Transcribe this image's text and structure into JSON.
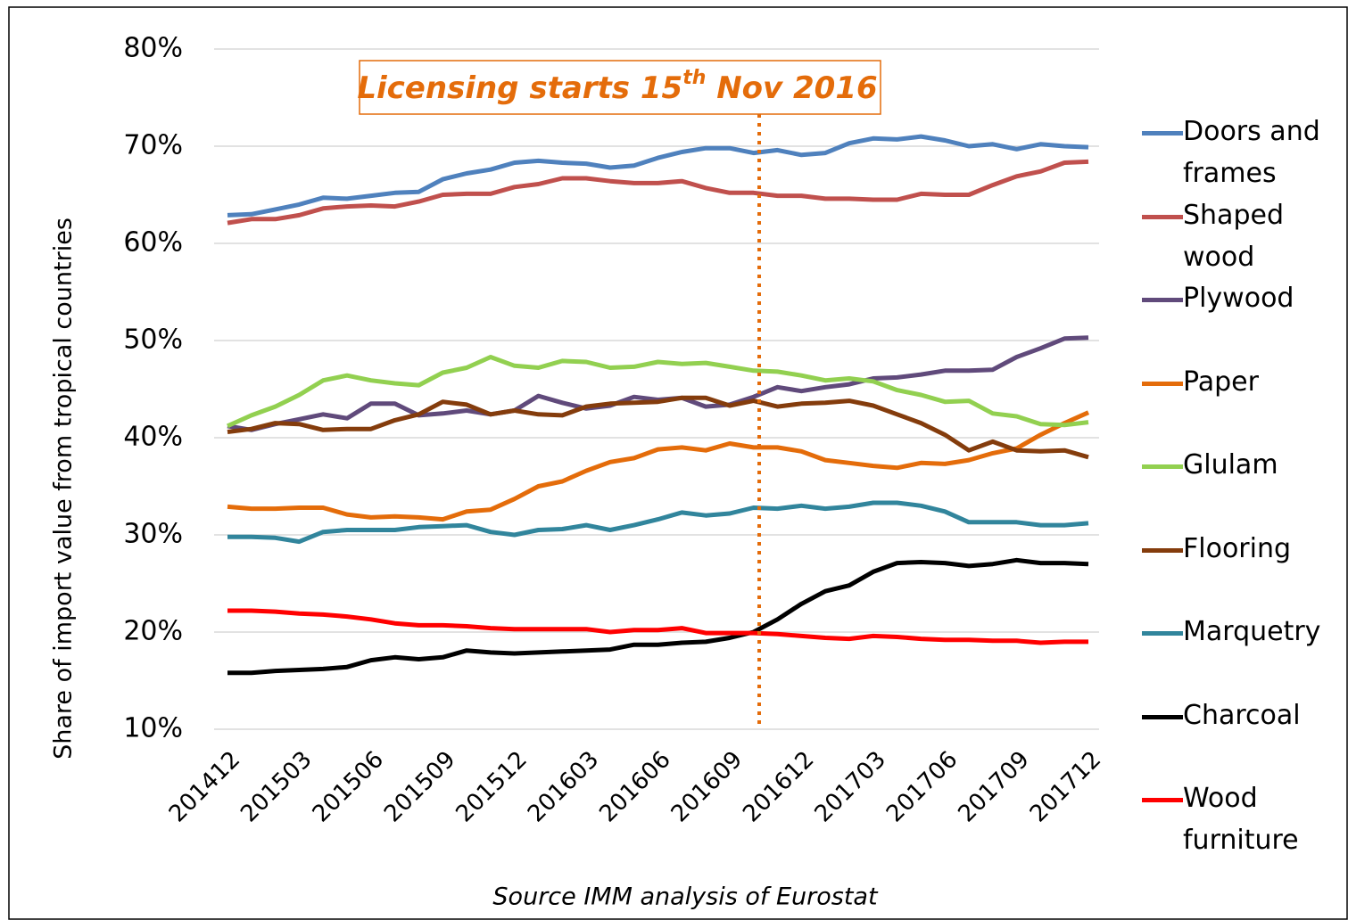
{
  "chart_data": {
    "type": "line",
    "annotation": [
      "Licensing starts 15",
      "th",
      " Nov 2016"
    ],
    "y_label": "Share of import value from tropical countries",
    "source": "Source IMM analysis of Eurostat",
    "categories": [
      "201412",
      null,
      null,
      "201503",
      null,
      null,
      "201506",
      null,
      null,
      "201509",
      null,
      null,
      "201512",
      null,
      null,
      "201603",
      null,
      null,
      "201606",
      null,
      null,
      "201609",
      null,
      null,
      "201612",
      null,
      null,
      "201703",
      null,
      null,
      "201706",
      null,
      null,
      "201709",
      null,
      null,
      "201712"
    ],
    "ylim": [
      10,
      80
    ],
    "yticks": [
      {
        "value": 10,
        "label": "10%"
      },
      {
        "value": 20,
        "label": "20%"
      },
      {
        "value": 30,
        "label": "30%"
      },
      {
        "value": 40,
        "label": "40%"
      },
      {
        "value": 50,
        "label": "50%"
      },
      {
        "value": 60,
        "label": "60%"
      },
      {
        "value": 70,
        "label": "70%"
      },
      {
        "value": 80,
        "label": "80%"
      }
    ],
    "grid": true,
    "legend": "right",
    "series": [
      {
        "name": "Doors and frames",
        "color": "#4f81bd",
        "values": [
          62.9,
          63.0,
          63.5,
          64.0,
          64.7,
          64.6,
          64.9,
          65.2,
          65.3,
          66.6,
          67.2,
          67.6,
          68.3,
          68.5,
          68.3,
          68.2,
          67.8,
          68.0,
          68.8,
          69.4,
          69.8,
          69.8,
          69.3,
          69.6,
          69.1,
          69.3,
          70.3,
          70.8,
          70.7,
          71.0,
          70.6,
          70.0,
          70.2,
          69.7,
          70.2,
          70.0,
          69.9
        ]
      },
      {
        "name": "Shaped wood",
        "color": "#c0504d",
        "values": [
          62.1,
          62.5,
          62.5,
          62.9,
          63.6,
          63.8,
          63.9,
          63.8,
          64.3,
          65.0,
          65.1,
          65.1,
          65.8,
          66.1,
          66.7,
          66.7,
          66.4,
          66.2,
          66.2,
          66.4,
          65.7,
          65.2,
          65.2,
          64.9,
          64.9,
          64.6,
          64.6,
          64.5,
          64.5,
          65.1,
          65.0,
          65.0,
          66.0,
          66.9,
          67.4,
          68.3,
          68.4
        ]
      },
      {
        "name": "Plywood",
        "color": "#604a7b",
        "values": [
          41.2,
          40.8,
          41.4,
          41.9,
          42.4,
          42.0,
          43.5,
          43.5,
          42.3,
          42.5,
          42.8,
          42.4,
          42.8,
          44.3,
          43.6,
          43.0,
          43.3,
          44.2,
          43.9,
          44.1,
          43.2,
          43.4,
          44.2,
          45.2,
          44.8,
          45.2,
          45.5,
          46.1,
          46.2,
          46.5,
          46.9,
          46.9,
          47.0,
          48.3,
          49.2,
          50.2,
          50.3
        ]
      },
      {
        "name": "Paper",
        "color": "#e46c0a",
        "values": [
          32.9,
          32.7,
          32.7,
          32.8,
          32.8,
          32.1,
          31.8,
          31.9,
          31.8,
          31.6,
          32.4,
          32.6,
          33.7,
          35.0,
          35.5,
          36.6,
          37.5,
          37.9,
          38.8,
          39.0,
          38.7,
          39.4,
          39.0,
          39.0,
          38.6,
          37.7,
          37.4,
          37.1,
          36.9,
          37.4,
          37.3,
          37.7,
          38.4,
          38.9,
          40.3,
          41.5,
          42.6
        ]
      },
      {
        "name": "Glulam",
        "color": "#92d050",
        "values": [
          41.2,
          42.3,
          43.2,
          44.4,
          45.9,
          46.4,
          45.9,
          45.6,
          45.4,
          46.7,
          47.2,
          48.3,
          47.4,
          47.2,
          47.9,
          47.8,
          47.2,
          47.3,
          47.8,
          47.6,
          47.7,
          47.3,
          46.9,
          46.8,
          46.4,
          45.9,
          46.1,
          45.8,
          44.9,
          44.4,
          43.7,
          43.8,
          42.5,
          42.2,
          41.4,
          41.3,
          41.6
        ]
      },
      {
        "name": "Flooring",
        "color": "#843c0c",
        "values": [
          40.6,
          40.9,
          41.5,
          41.4,
          40.8,
          40.9,
          40.9,
          41.8,
          42.4,
          43.7,
          43.4,
          42.4,
          42.8,
          42.4,
          42.3,
          43.2,
          43.5,
          43.6,
          43.7,
          44.1,
          44.1,
          43.3,
          43.8,
          43.2,
          43.5,
          43.6,
          43.8,
          43.3,
          42.4,
          41.5,
          40.3,
          38.7,
          39.6,
          38.7,
          38.6,
          38.7,
          38.0
        ]
      },
      {
        "name": "Marquetry",
        "color": "#31859c",
        "values": [
          29.8,
          29.8,
          29.7,
          29.3,
          30.3,
          30.5,
          30.5,
          30.5,
          30.8,
          30.9,
          31.0,
          30.3,
          30.0,
          30.5,
          30.6,
          31.0,
          30.5,
          31.0,
          31.6,
          32.3,
          32.0,
          32.2,
          32.8,
          32.7,
          33.0,
          32.7,
          32.9,
          33.3,
          33.3,
          33.0,
          32.4,
          31.3,
          31.3,
          31.3,
          31.0,
          31.0,
          31.2
        ]
      },
      {
        "name": "Charcoal",
        "color": "#000000",
        "values": [
          15.8,
          15.8,
          16.0,
          16.1,
          16.2,
          16.4,
          17.1,
          17.4,
          17.2,
          17.4,
          18.1,
          17.9,
          17.8,
          17.9,
          18.0,
          18.1,
          18.2,
          18.7,
          18.7,
          18.9,
          19.0,
          19.4,
          20.0,
          21.3,
          22.9,
          24.2,
          24.8,
          26.2,
          27.1,
          27.2,
          27.1,
          26.8,
          27.0,
          27.4,
          27.1,
          27.1,
          27.0
        ]
      },
      {
        "name": "Wood furniture",
        "color": "#ff0000",
        "values": [
          22.2,
          22.2,
          22.1,
          21.9,
          21.8,
          21.6,
          21.3,
          20.9,
          20.7,
          20.7,
          20.6,
          20.4,
          20.3,
          20.3,
          20.3,
          20.3,
          20.0,
          20.2,
          20.2,
          20.4,
          19.9,
          19.9,
          19.9,
          19.8,
          19.6,
          19.4,
          19.3,
          19.6,
          19.5,
          19.3,
          19.2,
          19.2,
          19.1,
          19.1,
          18.9,
          19.0,
          19.0
        ]
      }
    ]
  }
}
